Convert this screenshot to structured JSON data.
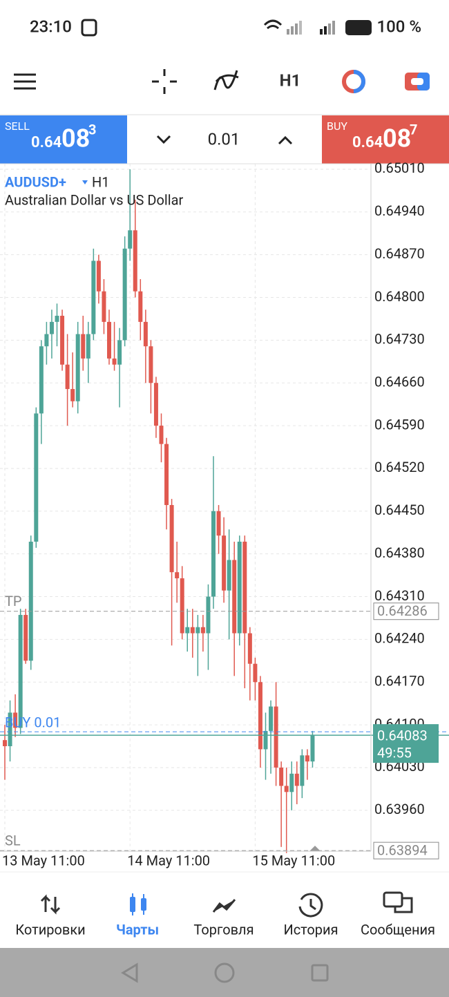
{
  "status_bar": {
    "time": "23:10",
    "battery": "100 %"
  },
  "toolbar": {
    "timeframe": "H1"
  },
  "trade_bar": {
    "sell": {
      "label": "SELL",
      "price_prefix": "0.64",
      "price_main": "08",
      "price_sup": "3"
    },
    "volume": "0.01",
    "buy": {
      "label": "BUY",
      "price_prefix": "0.64",
      "price_main": "08",
      "price_sup": "7"
    }
  },
  "chart_data": {
    "type": "candlestick",
    "symbol": "AUDUSD+",
    "timeframe": "H1",
    "description": "Australian Dollar vs US Dollar",
    "up_color": "#4ea497",
    "down_color": "#e0594f",
    "grid": true,
    "candles": [
      [
        0.64075,
        0.641,
        0.6401,
        0.64065
      ],
      [
        0.64065,
        0.6414,
        0.6404,
        0.6412
      ],
      [
        0.6412,
        0.6415,
        0.6408,
        0.64095
      ],
      [
        0.64095,
        0.6429,
        0.64085,
        0.6428
      ],
      [
        0.6428,
        0.6429,
        0.642,
        0.64205
      ],
      [
        0.64205,
        0.6441,
        0.6419,
        0.644
      ],
      [
        0.644,
        0.6462,
        0.6439,
        0.6461
      ],
      [
        0.6461,
        0.6473,
        0.6456,
        0.6472
      ],
      [
        0.6472,
        0.6476,
        0.6469,
        0.6474
      ],
      [
        0.6474,
        0.6478,
        0.647,
        0.6476
      ],
      [
        0.6476,
        0.6479,
        0.6472,
        0.6477
      ],
      [
        0.6477,
        0.6478,
        0.6468,
        0.6469
      ],
      [
        0.6469,
        0.6474,
        0.6459,
        0.6465
      ],
      [
        0.6465,
        0.6471,
        0.6462,
        0.6463
      ],
      [
        0.6463,
        0.6476,
        0.6461,
        0.6474
      ],
      [
        0.6474,
        0.6477,
        0.6468,
        0.647
      ],
      [
        0.647,
        0.6476,
        0.6466,
        0.6474
      ],
      [
        0.6474,
        0.6488,
        0.6473,
        0.6486
      ],
      [
        0.6486,
        0.6487,
        0.6479,
        0.6481
      ],
      [
        0.6481,
        0.6483,
        0.6474,
        0.6476
      ],
      [
        0.6476,
        0.6478,
        0.6469,
        0.647
      ],
      [
        0.647,
        0.6476,
        0.6468,
        0.6469
      ],
      [
        0.6469,
        0.6475,
        0.6462,
        0.6473
      ],
      [
        0.6473,
        0.649,
        0.6472,
        0.6488
      ],
      [
        0.6488,
        0.6501,
        0.6486,
        0.6491
      ],
      [
        0.6491,
        0.6496,
        0.648,
        0.6481
      ],
      [
        0.6481,
        0.6483,
        0.6473,
        0.6476
      ],
      [
        0.6476,
        0.6478,
        0.6466,
        0.6472
      ],
      [
        0.6472,
        0.6473,
        0.6461,
        0.6466
      ],
      [
        0.6466,
        0.6467,
        0.6457,
        0.6459
      ],
      [
        0.6459,
        0.6461,
        0.6453,
        0.6456
      ],
      [
        0.6456,
        0.6457,
        0.6442,
        0.6446
      ],
      [
        0.6446,
        0.6447,
        0.6423,
        0.6435
      ],
      [
        0.6435,
        0.644,
        0.643,
        0.6434
      ],
      [
        0.6434,
        0.6436,
        0.6424,
        0.6425
      ],
      [
        0.6425,
        0.6429,
        0.6422,
        0.6426
      ],
      [
        0.6426,
        0.6429,
        0.6421,
        0.6425
      ],
      [
        0.6425,
        0.6428,
        0.6418,
        0.6426
      ],
      [
        0.6426,
        0.6428,
        0.6422,
        0.6425
      ],
      [
        0.6425,
        0.6433,
        0.6419,
        0.6431
      ],
      [
        0.6431,
        0.6454,
        0.6429,
        0.6445
      ],
      [
        0.6445,
        0.6446,
        0.6438,
        0.6441
      ],
      [
        0.6441,
        0.6444,
        0.643,
        0.6432
      ],
      [
        0.6432,
        0.6442,
        0.6424,
        0.6437
      ],
      [
        0.6437,
        0.644,
        0.6418,
        0.6425
      ],
      [
        0.6425,
        0.6441,
        0.6423,
        0.644
      ],
      [
        0.644,
        0.6441,
        0.6416,
        0.6425
      ],
      [
        0.6425,
        0.6426,
        0.6414,
        0.642
      ],
      [
        0.642,
        0.6421,
        0.6414,
        0.6417
      ],
      [
        0.6417,
        0.6418,
        0.6403,
        0.6406
      ],
      [
        0.6406,
        0.6412,
        0.6401,
        0.6409
      ],
      [
        0.6409,
        0.6414,
        0.6402,
        0.6413
      ],
      [
        0.6413,
        0.6417,
        0.64,
        0.6403
      ],
      [
        0.6403,
        0.6404,
        0.639,
        0.64
      ],
      [
        0.64,
        0.6403,
        0.6389,
        0.6399
      ],
      [
        0.6399,
        0.6404,
        0.6396,
        0.6402
      ],
      [
        0.6402,
        0.6404,
        0.6397,
        0.64
      ],
      [
        0.64,
        0.6406,
        0.6398,
        0.6405
      ],
      [
        0.6405,
        0.6406,
        0.6401,
        0.6404
      ],
      [
        0.6404,
        0.6409,
        0.6403,
        0.64083
      ]
    ],
    "ylim": [
      0.63893,
      0.65019
    ],
    "yticks": [
      {
        "value": 0.6501,
        "label": "0.65010"
      },
      {
        "value": 0.6494,
        "label": "0.64940"
      },
      {
        "value": 0.6487,
        "label": "0.64870"
      },
      {
        "value": 0.648,
        "label": "0.64800"
      },
      {
        "value": 0.6473,
        "label": "0.64730"
      },
      {
        "value": 0.6466,
        "label": "0.64660"
      },
      {
        "value": 0.6459,
        "label": "0.64590"
      },
      {
        "value": 0.6452,
        "label": "0.64520"
      },
      {
        "value": 0.6445,
        "label": "0.64450"
      },
      {
        "value": 0.6438,
        "label": "0.64380"
      },
      {
        "value": 0.6431,
        "label": "0.64310"
      },
      {
        "value": 0.6424,
        "label": "0.64240"
      },
      {
        "value": 0.6417,
        "label": "0.64170"
      },
      {
        "value": 0.641,
        "label": "0.64100"
      },
      {
        "value": 0.6403,
        "label": "0.64030"
      },
      {
        "value": 0.6396,
        "label": "0.63960"
      }
    ],
    "xticks": [
      {
        "value": 0,
        "label": "13 May 11:00"
      },
      {
        "value": 24,
        "label": "14 May 11:00"
      },
      {
        "value": 48,
        "label": "15 May 11:00"
      }
    ],
    "levels": [
      {
        "name": "TP",
        "value": 0.64286
      },
      {
        "name": "SL",
        "value": 0.63894
      }
    ],
    "order": {
      "label": "BUY 0.01"
    },
    "current": {
      "value": 0.64083,
      "timer": "49:55"
    }
  },
  "nav": [
    {
      "label": "Котировки"
    },
    {
      "label": "Чарты"
    },
    {
      "label": "Торговля"
    },
    {
      "label": "История"
    },
    {
      "label": "Сообщения"
    }
  ]
}
